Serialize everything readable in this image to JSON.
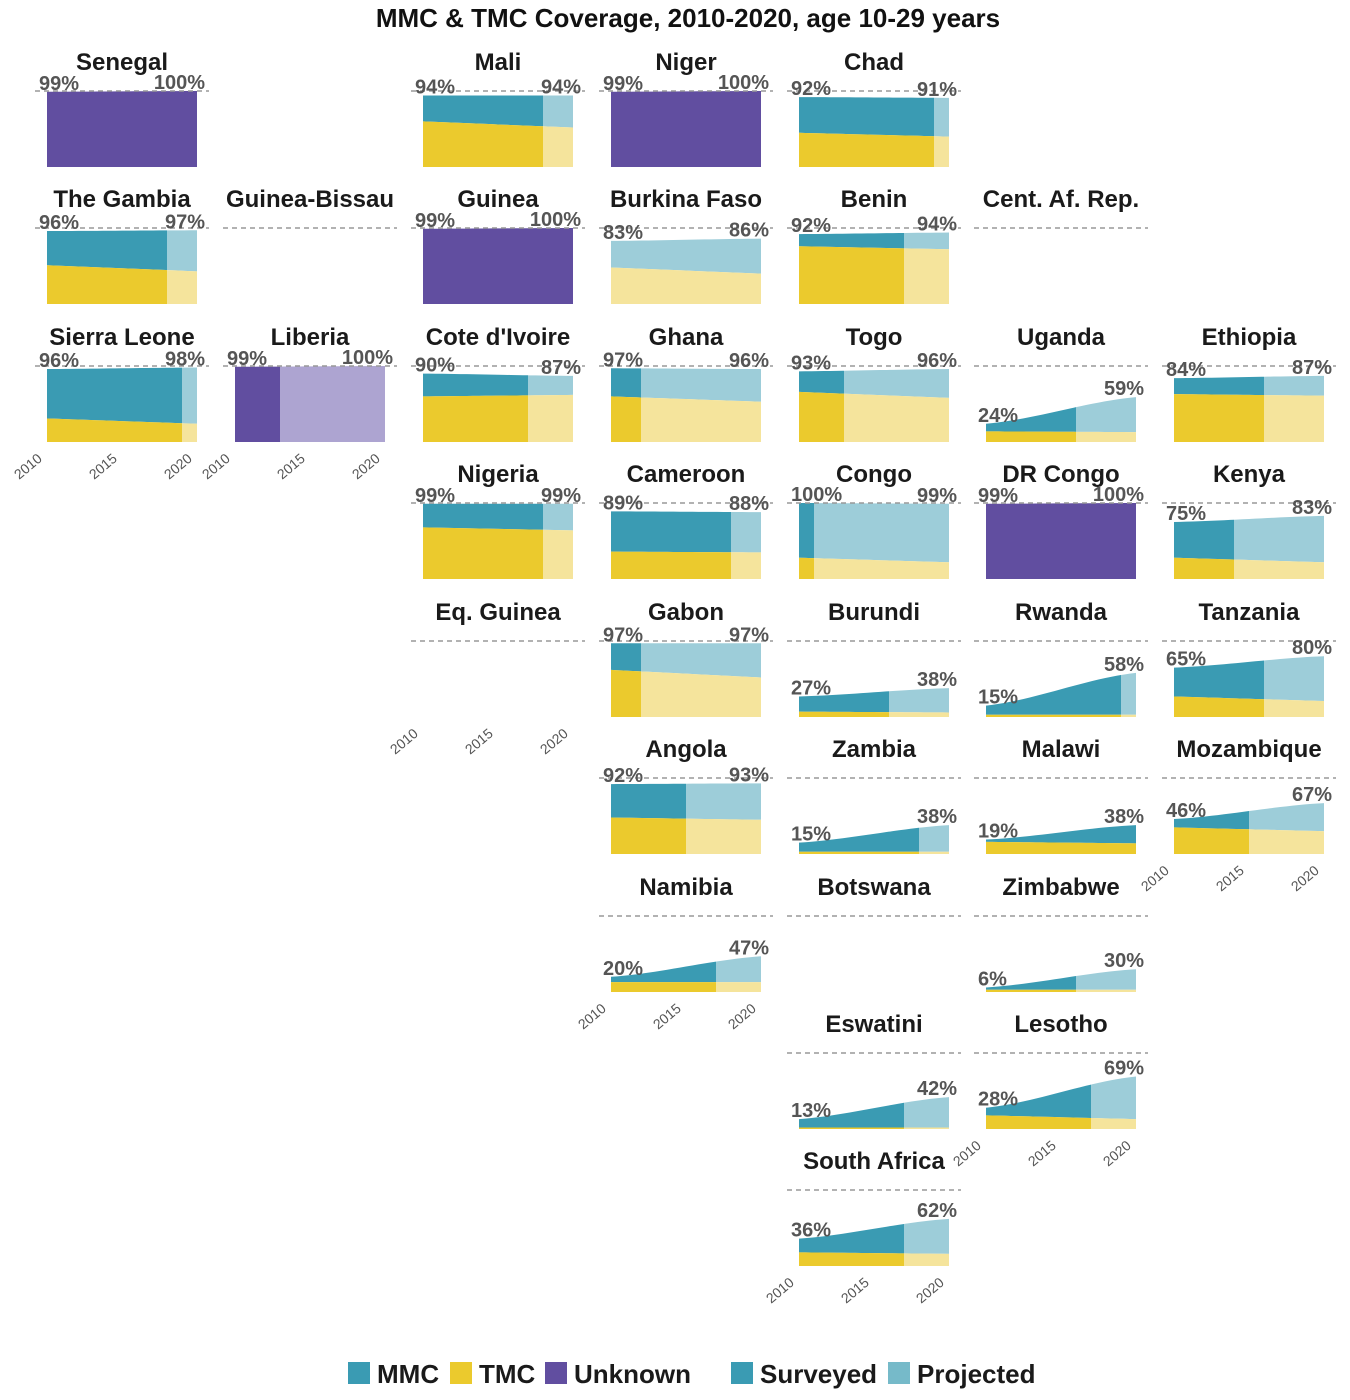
{
  "chart_data": {
    "type": "area",
    "title": "MMC & TMC Coverage, 2010-2020, age 10-29 years",
    "x_range": [
      2010,
      2020
    ],
    "x_ticks": [
      "2010",
      "2015",
      "2020"
    ],
    "y_range": [
      0,
      100
    ],
    "reference_line": 100,
    "projection_start_year": 2018,
    "colors": {
      "mmc_surveyed": "#3a9bb3",
      "mmc_projected": "#9dcdd9",
      "tmc_surveyed": "#ebca2d",
      "tmc_projected": "#f5e49c",
      "unknown_surveyed": "#614ea0",
      "unknown_projected": "#ada4d1",
      "reference_line": "#999999"
    },
    "legend": {
      "placement": "bottom",
      "items": [
        {
          "key": "mmc",
          "label": "MMC",
          "color": "#3a9bb3"
        },
        {
          "key": "tmc",
          "label": "TMC",
          "color": "#ebca2d"
        },
        {
          "key": "unknown",
          "label": "Unknown",
          "color": "#614ea0"
        },
        {
          "key": "surveyed",
          "label": "Surveyed",
          "color": "#3a9bb3"
        },
        {
          "key": "projected",
          "label": "Projected",
          "color": "#76bac9"
        }
      ]
    },
    "countries": [
      {
        "name": "Senegal",
        "row": 0,
        "col": 0,
        "type": "unknown",
        "start": 99,
        "end": 100,
        "tmc_start": 0,
        "tmc_end": 0,
        "label_start": "99%",
        "label_end": "100%"
      },
      {
        "name": "Mali",
        "row": 0,
        "col": 2,
        "type": "split",
        "proj_start": 2018,
        "start": 94,
        "end": 94,
        "tmc_start": 60,
        "tmc_end": 52,
        "label_start": "94%",
        "label_end": "94%"
      },
      {
        "name": "Niger",
        "row": 0,
        "col": 3,
        "type": "unknown",
        "start": 99,
        "end": 100,
        "tmc_start": 0,
        "tmc_end": 0,
        "label_start": "99%",
        "label_end": "100%"
      },
      {
        "name": "Chad",
        "row": 0,
        "col": 4,
        "type": "split",
        "proj_start": 2019,
        "start": 92,
        "end": 91,
        "tmc_start": 45,
        "tmc_end": 40,
        "label_start": "92%",
        "label_end": "91%"
      },
      {
        "name": "The Gambia",
        "row": 1,
        "col": 0,
        "type": "split",
        "proj_start": 2018,
        "start": 96,
        "end": 97,
        "tmc_start": 51,
        "tmc_end": 43,
        "label_start": "96%",
        "label_end": "97%"
      },
      {
        "name": "Guinea-Bissau",
        "row": 1,
        "col": 1,
        "type": "none"
      },
      {
        "name": "Guinea",
        "row": 1,
        "col": 2,
        "type": "unknown",
        "start": 99,
        "end": 100,
        "tmc_start": 0,
        "tmc_end": 0,
        "label_start": "99%",
        "label_end": "100%"
      },
      {
        "name": "Burkina Faso",
        "row": 1,
        "col": 3,
        "type": "split",
        "proj_start": 2010,
        "start": 83,
        "end": 86,
        "tmc_start": 48,
        "tmc_end": 40,
        "label_start": "83%",
        "label_end": "86%"
      },
      {
        "name": "Benin",
        "row": 1,
        "col": 4,
        "type": "split",
        "proj_start": 2017,
        "start": 92,
        "end": 94,
        "tmc_start": 76,
        "tmc_end": 72,
        "label_start": "92%",
        "label_end": "94%"
      },
      {
        "name": "Cent. Af. Rep.",
        "row": 1,
        "col": 5,
        "type": "none"
      },
      {
        "name": "Sierra Leone",
        "row": 2,
        "col": 0,
        "type": "split",
        "proj_start": 2019,
        "start": 96,
        "end": 98,
        "tmc_start": 31,
        "tmc_end": 24,
        "label_start": "96%",
        "label_end": "98%"
      },
      {
        "name": "Liberia",
        "row": 2,
        "col": 1,
        "type": "unknown",
        "proj_start": 2013,
        "start": 99,
        "end": 100,
        "tmc_start": 0,
        "tmc_end": 0,
        "label_start": "99%",
        "label_end": "100%"
      },
      {
        "name": "Cote d'Ivoire",
        "row": 2,
        "col": 2,
        "type": "split",
        "proj_start": 2017,
        "start": 90,
        "end": 87,
        "tmc_start": 60,
        "tmc_end": 62,
        "label_start": "90%",
        "label_end": "87%"
      },
      {
        "name": "Ghana",
        "row": 2,
        "col": 3,
        "type": "split",
        "proj_start": 2012,
        "start": 97,
        "end": 96,
        "tmc_start": 60,
        "tmc_end": 53,
        "label_start": "97%",
        "label_end": "96%"
      },
      {
        "name": "Togo",
        "row": 2,
        "col": 4,
        "type": "split",
        "proj_start": 2013,
        "start": 93,
        "end": 96,
        "tmc_start": 66,
        "tmc_end": 58,
        "label_start": "93%",
        "label_end": "96%"
      },
      {
        "name": "Uganda",
        "row": 2,
        "col": 5,
        "type": "split",
        "proj_start": 2016,
        "start": 24,
        "end": 59,
        "tmc_start": 14,
        "tmc_end": 13,
        "label_start": "24%",
        "label_end": "59%"
      },
      {
        "name": "Ethiopia",
        "row": 2,
        "col": 6,
        "type": "split",
        "proj_start": 2016,
        "start": 84,
        "end": 87,
        "tmc_start": 63,
        "tmc_end": 61,
        "label_start": "84%",
        "label_end": "87%"
      },
      {
        "name": "Nigeria",
        "row": 3,
        "col": 2,
        "type": "split",
        "proj_start": 2018,
        "start": 99,
        "end": 99,
        "tmc_start": 68,
        "tmc_end": 64,
        "label_start": "99%",
        "label_end": "99%"
      },
      {
        "name": "Cameroon",
        "row": 3,
        "col": 3,
        "type": "split",
        "proj_start": 2018,
        "start": 89,
        "end": 88,
        "tmc_start": 36,
        "tmc_end": 35,
        "label_start": "89%",
        "label_end": "88%"
      },
      {
        "name": "Congo",
        "row": 3,
        "col": 4,
        "type": "split",
        "proj_start": 2011,
        "start": 100,
        "end": 99,
        "tmc_start": 28,
        "tmc_end": 22,
        "label_start": "100%",
        "label_end": "99%"
      },
      {
        "name": "DR Congo",
        "row": 3,
        "col": 5,
        "type": "unknown",
        "start": 99,
        "end": 100,
        "tmc_start": 0,
        "tmc_end": 0,
        "label_start": "99%",
        "label_end": "100%"
      },
      {
        "name": "Kenya",
        "row": 3,
        "col": 6,
        "type": "split",
        "proj_start": 2014,
        "start": 75,
        "end": 83,
        "tmc_start": 28,
        "tmc_end": 22,
        "label_start": "75%",
        "label_end": "83%"
      },
      {
        "name": "Eq. Guinea",
        "row": 4,
        "col": 2,
        "type": "none"
      },
      {
        "name": "Gabon",
        "row": 4,
        "col": 3,
        "type": "split",
        "proj_start": 2012,
        "start": 97,
        "end": 97,
        "tmc_start": 62,
        "tmc_end": 52,
        "label_start": "97%",
        "label_end": "97%"
      },
      {
        "name": "Burundi",
        "row": 4,
        "col": 4,
        "type": "split",
        "proj_start": 2016,
        "start": 27,
        "end": 38,
        "tmc_start": 7,
        "tmc_end": 6,
        "label_start": "27%",
        "label_end": "38%"
      },
      {
        "name": "Rwanda",
        "row": 4,
        "col": 5,
        "type": "split",
        "proj_start": 2019,
        "start": 15,
        "end": 58,
        "tmc_start": 3,
        "tmc_end": 3,
        "label_start": "15%",
        "label_end": "58%"
      },
      {
        "name": "Tanzania",
        "row": 4,
        "col": 6,
        "type": "split",
        "proj_start": 2016,
        "start": 65,
        "end": 80,
        "tmc_start": 27,
        "tmc_end": 21,
        "label_start": "65%",
        "label_end": "80%"
      },
      {
        "name": "Angola",
        "row": 5,
        "col": 3,
        "type": "split",
        "proj_start": 2015,
        "start": 92,
        "end": 93,
        "tmc_start": 48,
        "tmc_end": 45,
        "label_start": "92%",
        "label_end": "93%"
      },
      {
        "name": "Zambia",
        "row": 5,
        "col": 4,
        "type": "split",
        "proj_start": 2018,
        "start": 15,
        "end": 38,
        "tmc_start": 3,
        "tmc_end": 3,
        "label_start": "15%",
        "label_end": "38%"
      },
      {
        "name": "Malawi",
        "row": 5,
        "col": 5,
        "type": "split",
        "proj_start": 2020,
        "start": 19,
        "end": 38,
        "tmc_start": 16,
        "tmc_end": 14,
        "label_start": "19%",
        "label_end": "38%"
      },
      {
        "name": "Mozambique",
        "row": 5,
        "col": 6,
        "type": "split",
        "proj_start": 2015,
        "start": 46,
        "end": 67,
        "tmc_start": 35,
        "tmc_end": 30,
        "label_start": "46%",
        "label_end": "67%"
      },
      {
        "name": "Namibia",
        "row": 6,
        "col": 3,
        "type": "split",
        "proj_start": 2017,
        "start": 20,
        "end": 47,
        "tmc_start": 13,
        "tmc_end": 13,
        "label_start": "20%",
        "label_end": "47%"
      },
      {
        "name": "Botswana",
        "row": 6,
        "col": 4,
        "type": "none"
      },
      {
        "name": "Zimbabwe",
        "row": 6,
        "col": 5,
        "type": "split",
        "proj_start": 2016,
        "start": 6,
        "end": 30,
        "tmc_start": 3,
        "tmc_end": 3,
        "label_start": "6%",
        "label_end": "30%"
      },
      {
        "name": "Eswatini",
        "row": 7,
        "col": 4,
        "type": "split",
        "proj_start": 2017,
        "start": 13,
        "end": 42,
        "tmc_start": 2,
        "tmc_end": 2,
        "label_start": "13%",
        "label_end": "42%"
      },
      {
        "name": "Lesotho",
        "row": 7,
        "col": 5,
        "type": "split",
        "proj_start": 2017,
        "start": 28,
        "end": 69,
        "tmc_start": 18,
        "tmc_end": 13,
        "label_start": "28%",
        "label_end": "69%"
      },
      {
        "name": "South Africa",
        "row": 8,
        "col": 4,
        "type": "split",
        "proj_start": 2017,
        "start": 36,
        "end": 62,
        "tmc_start": 18,
        "tmc_end": 16,
        "label_start": "36%",
        "label_end": "62%"
      }
    ],
    "x_axis_panels": [
      {
        "row": 2,
        "col": 0
      },
      {
        "row": 2,
        "col": 1
      },
      {
        "row": 4,
        "col": 2
      },
      {
        "row": 5,
        "col": 6
      },
      {
        "row": 6,
        "col": 3
      },
      {
        "row": 7,
        "col": 5
      },
      {
        "row": 8,
        "col": 4
      }
    ]
  }
}
